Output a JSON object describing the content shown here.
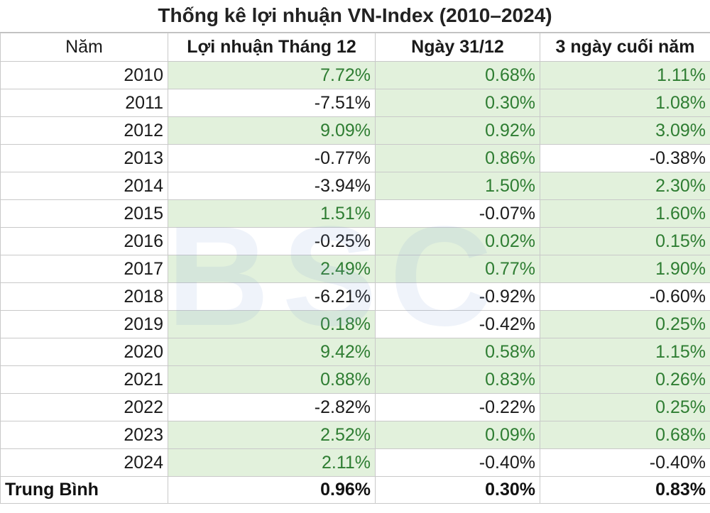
{
  "title": "Thống kê lợi nhuận VN-Index (2010–2024)",
  "watermark": "BSC",
  "headers": {
    "year": "Năm",
    "dec_return": "Lợi nhuận Tháng 12",
    "dec31": "Ngày 31/12",
    "last3": "3 ngày cuối năm"
  },
  "rows": [
    {
      "year": "2010",
      "dec_return": "7.72%",
      "dec31": "0.68%",
      "last3": "1.11%"
    },
    {
      "year": "2011",
      "dec_return": "-7.51%",
      "dec31": "0.30%",
      "last3": "1.08%"
    },
    {
      "year": "2012",
      "dec_return": "9.09%",
      "dec31": "0.92%",
      "last3": "3.09%"
    },
    {
      "year": "2013",
      "dec_return": "-0.77%",
      "dec31": "0.86%",
      "last3": "-0.38%"
    },
    {
      "year": "2014",
      "dec_return": "-3.94%",
      "dec31": "1.50%",
      "last3": "2.30%"
    },
    {
      "year": "2015",
      "dec_return": "1.51%",
      "dec31": "-0.07%",
      "last3": "1.60%"
    },
    {
      "year": "2016",
      "dec_return": "-0.25%",
      "dec31": "0.02%",
      "last3": "0.15%"
    },
    {
      "year": "2017",
      "dec_return": "2.49%",
      "dec31": "0.77%",
      "last3": "1.90%"
    },
    {
      "year": "2018",
      "dec_return": "-6.21%",
      "dec31": "-0.92%",
      "last3": "-0.60%"
    },
    {
      "year": "2019",
      "dec_return": "0.18%",
      "dec31": "-0.42%",
      "last3": "0.25%"
    },
    {
      "year": "2020",
      "dec_return": "9.42%",
      "dec31": "0.58%",
      "last3": "1.15%"
    },
    {
      "year": "2021",
      "dec_return": "0.88%",
      "dec31": "0.83%",
      "last3": "0.26%"
    },
    {
      "year": "2022",
      "dec_return": "-2.82%",
      "dec31": "-0.22%",
      "last3": "0.25%"
    },
    {
      "year": "2023",
      "dec_return": "2.52%",
      "dec31": "0.09%",
      "last3": "0.68%"
    },
    {
      "year": "2024",
      "dec_return": "2.11%",
      "dec31": "-0.40%",
      "last3": "-0.40%"
    }
  ],
  "average": {
    "label": "Trung Bình",
    "dec_return": "0.96%",
    "dec31": "0.30%",
    "last3": "0.83%"
  },
  "colors": {
    "positive_fill": "#e2f1dc",
    "positive_text": "#2e7d32",
    "negative_text": "#1a1a1a"
  }
}
